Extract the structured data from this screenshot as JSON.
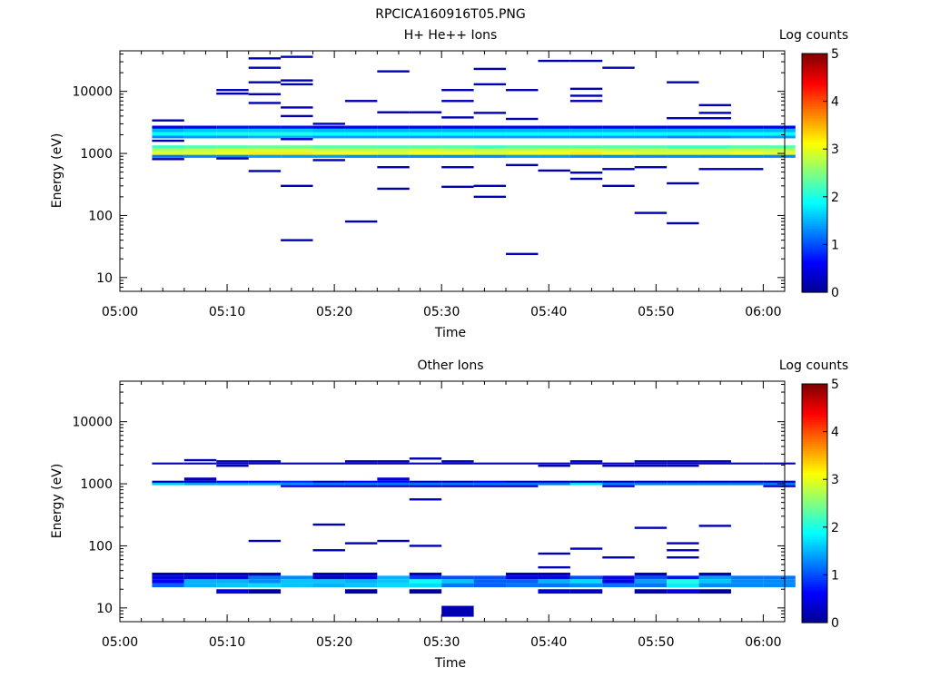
{
  "figure_title": "RPCICA160916T05.PNG",
  "colormap": [
    "#00008f",
    "#0000ff",
    "#0080ff",
    "#00ffff",
    "#80ff80",
    "#ffff00",
    "#ff8000",
    "#ff0000",
    "#800000"
  ],
  "chart_data": [
    {
      "type": "heatmap",
      "title": "H+ He++ Ions",
      "xlabel": "Time",
      "ylabel": "Energy (eV)",
      "x_ticks": [
        "05:00",
        "05:10",
        "05:20",
        "05:30",
        "05:40",
        "05:50",
        "06:00"
      ],
      "x_range_minutes": [
        0,
        62
      ],
      "y_scale": "log",
      "y_ticks": [
        "10",
        "100",
        "1000",
        "10000"
      ],
      "y_range": [
        6,
        45000
      ],
      "colorbar": {
        "label": "Log counts",
        "range": [
          0,
          5
        ],
        "ticks": [
          "0",
          "1",
          "2",
          "3",
          "4",
          "5"
        ]
      },
      "columns": [
        3,
        6,
        9,
        12,
        15,
        18,
        21,
        24,
        27,
        30,
        33,
        36,
        39,
        42,
        45,
        48,
        51,
        54,
        57,
        60
      ],
      "bands": [
        {
          "e_lo": 850,
          "e_hi": 950,
          "values": [
            1.2,
            1.3,
            1.3,
            1.4,
            1.4,
            1.4,
            1.3,
            1.3,
            1.3,
            1.3,
            1.3,
            1.4,
            1.4,
            1.3,
            1.3,
            1.3,
            1.3,
            1.3,
            1.3,
            1.3
          ]
        },
        {
          "e_lo": 950,
          "e_hi": 1080,
          "values": [
            3.0,
            3.0,
            3.1,
            3.2,
            3.2,
            3.1,
            3.1,
            3.0,
            3.1,
            3.1,
            3.0,
            3.1,
            3.1,
            3.2,
            3.1,
            3.0,
            3.0,
            3.0,
            3.1,
            3.0
          ]
        },
        {
          "e_lo": 1080,
          "e_hi": 1200,
          "values": [
            2.7,
            2.8,
            2.9,
            2.9,
            2.9,
            2.8,
            2.8,
            2.8,
            2.9,
            2.8,
            2.8,
            2.8,
            2.9,
            2.9,
            2.8,
            2.8,
            2.8,
            2.8,
            2.8,
            2.8
          ]
        },
        {
          "e_lo": 1200,
          "e_hi": 1350,
          "values": [
            2.2,
            2.3,
            2.3,
            2.4,
            2.4,
            2.3,
            2.3,
            2.3,
            2.3,
            2.3,
            2.2,
            2.3,
            2.3,
            2.3,
            2.3,
            2.3,
            2.2,
            2.2,
            2.3,
            2.3
          ]
        },
        {
          "e_lo": 1750,
          "e_hi": 1950,
          "values": [
            1.3,
            1.4,
            1.4,
            1.5,
            1.5,
            1.4,
            1.4,
            1.4,
            1.4,
            1.4,
            1.4,
            1.4,
            1.4,
            1.4,
            1.4,
            1.4,
            1.3,
            1.3,
            1.4,
            1.4
          ]
        },
        {
          "e_lo": 1950,
          "e_hi": 2200,
          "values": [
            1.9,
            1.9,
            2.0,
            2.0,
            2.0,
            1.9,
            1.9,
            1.9,
            1.9,
            1.9,
            1.9,
            1.9,
            1.9,
            1.9,
            1.9,
            1.9,
            1.9,
            1.9,
            1.9,
            1.9
          ]
        },
        {
          "e_lo": 2200,
          "e_hi": 2500,
          "values": [
            1.5,
            1.6,
            1.6,
            1.6,
            1.6,
            1.5,
            1.5,
            1.5,
            1.5,
            1.5,
            1.5,
            1.5,
            1.5,
            1.5,
            1.5,
            1.5,
            1.5,
            1.5,
            1.5,
            1.5
          ]
        },
        {
          "e_lo": 2500,
          "e_hi": 2800,
          "values": [
            0.5,
            0.6,
            0.7,
            0.7,
            0.7,
            0.6,
            0.6,
            0.6,
            0.6,
            0.6,
            0.6,
            0.6,
            0.6,
            0.6,
            0.6,
            0.6,
            0.5,
            0.5,
            0.6,
            0.6
          ]
        }
      ],
      "marks": [
        {
          "col": 3,
          "e": 3400,
          "v": 0.2
        },
        {
          "col": 3,
          "e": 1600,
          "v": 0.2
        },
        {
          "col": 3,
          "e": 810,
          "v": 0.2
        },
        {
          "col": 9,
          "e": 10500,
          "v": 0.3
        },
        {
          "col": 9,
          "e": 9200,
          "v": 0.2
        },
        {
          "col": 9,
          "e": 830,
          "v": 0.2
        },
        {
          "col": 12,
          "e": 34000,
          "v": 0.2
        },
        {
          "col": 12,
          "e": 24000,
          "v": 0.2
        },
        {
          "col": 12,
          "e": 14000,
          "v": 0.2
        },
        {
          "col": 12,
          "e": 9000,
          "v": 0.2
        },
        {
          "col": 12,
          "e": 6500,
          "v": 0.2
        },
        {
          "col": 12,
          "e": 520,
          "v": 0.2
        },
        {
          "col": 15,
          "e": 36000,
          "v": 0.2
        },
        {
          "col": 15,
          "e": 15000,
          "v": 0.2
        },
        {
          "col": 15,
          "e": 13000,
          "v": 0.2
        },
        {
          "col": 15,
          "e": 5500,
          "v": 0.2
        },
        {
          "col": 15,
          "e": 4000,
          "v": 0.2
        },
        {
          "col": 15,
          "e": 1700,
          "v": 0.3
        },
        {
          "col": 15,
          "e": 300,
          "v": 0.2
        },
        {
          "col": 15,
          "e": 40,
          "v": 0.2
        },
        {
          "col": 18,
          "e": 3000,
          "v": 0.2
        },
        {
          "col": 18,
          "e": 780,
          "v": 0.2
        },
        {
          "col": 21,
          "e": 7000,
          "v": 0.2
        },
        {
          "col": 21,
          "e": 80,
          "v": 0.2
        },
        {
          "col": 24,
          "e": 21000,
          "v": 0.2
        },
        {
          "col": 24,
          "e": 4600,
          "v": 0.2
        },
        {
          "col": 24,
          "e": 600,
          "v": 0.2
        },
        {
          "col": 24,
          "e": 270,
          "v": 0.2
        },
        {
          "col": 27,
          "e": 4600,
          "v": 0.2
        },
        {
          "col": 30,
          "e": 10500,
          "v": 0.2
        },
        {
          "col": 30,
          "e": 7000,
          "v": 0.2
        },
        {
          "col": 30,
          "e": 3800,
          "v": 0.2
        },
        {
          "col": 30,
          "e": 600,
          "v": 0.2
        },
        {
          "col": 30,
          "e": 290,
          "v": 0.2
        },
        {
          "col": 33,
          "e": 23000,
          "v": 0.2
        },
        {
          "col": 33,
          "e": 13000,
          "v": 0.2
        },
        {
          "col": 33,
          "e": 4500,
          "v": 0.2
        },
        {
          "col": 33,
          "e": 300,
          "v": 0.2
        },
        {
          "col": 33,
          "e": 200,
          "v": 0.2
        },
        {
          "col": 36,
          "e": 10500,
          "v": 0.2
        },
        {
          "col": 36,
          "e": 3600,
          "v": 0.2
        },
        {
          "col": 36,
          "e": 650,
          "v": 0.2
        },
        {
          "col": 36,
          "e": 24,
          "v": 0.3
        },
        {
          "col": 39,
          "e": 31000,
          "v": 0.2
        },
        {
          "col": 39,
          "e": 530,
          "v": 0.2
        },
        {
          "col": 42,
          "e": 31000,
          "v": 0.2
        },
        {
          "col": 42,
          "e": 11000,
          "v": 0.2
        },
        {
          "col": 42,
          "e": 8500,
          "v": 0.2
        },
        {
          "col": 42,
          "e": 7000,
          "v": 0.2
        },
        {
          "col": 42,
          "e": 490,
          "v": 0.2
        },
        {
          "col": 42,
          "e": 390,
          "v": 0.2
        },
        {
          "col": 45,
          "e": 24000,
          "v": 0.2
        },
        {
          "col": 45,
          "e": 560,
          "v": 0.2
        },
        {
          "col": 45,
          "e": 300,
          "v": 0.2
        },
        {
          "col": 48,
          "e": 600,
          "v": 0.2
        },
        {
          "col": 48,
          "e": 110,
          "v": 0.2
        },
        {
          "col": 51,
          "e": 14000,
          "v": 0.2
        },
        {
          "col": 51,
          "e": 3700,
          "v": 0.2
        },
        {
          "col": 51,
          "e": 330,
          "v": 0.2
        },
        {
          "col": 51,
          "e": 75,
          "v": 0.2
        },
        {
          "col": 54,
          "e": 6000,
          "v": 0.2
        },
        {
          "col": 54,
          "e": 4500,
          "v": 0.2
        },
        {
          "col": 54,
          "e": 3700,
          "v": 0.2
        },
        {
          "col": 54,
          "e": 560,
          "v": 0.2
        },
        {
          "col": 57,
          "e": 560,
          "v": 0.2
        }
      ]
    },
    {
      "type": "heatmap",
      "title": "Other Ions",
      "xlabel": "Time",
      "ylabel": "Energy (eV)",
      "x_ticks": [
        "05:00",
        "05:10",
        "05:20",
        "05:30",
        "05:40",
        "05:50",
        "06:00"
      ],
      "x_range_minutes": [
        0,
        62
      ],
      "y_scale": "log",
      "y_ticks": [
        "10",
        "100",
        "1000",
        "10000"
      ],
      "y_range": [
        6,
        45000
      ],
      "colorbar": {
        "label": "Log counts",
        "range": [
          0,
          5
        ],
        "ticks": [
          "0",
          "1",
          "2",
          "3",
          "4",
          "5"
        ]
      },
      "columns": [
        3,
        6,
        9,
        12,
        15,
        18,
        21,
        24,
        27,
        30,
        33,
        36,
        39,
        42,
        45,
        48,
        51,
        54,
        57,
        60
      ],
      "bands": [
        {
          "e_lo": 17,
          "e_hi": 20,
          "values": [
            null,
            null,
            0.5,
            0.1,
            null,
            null,
            0.1,
            null,
            0.1,
            null,
            null,
            null,
            0.4,
            0.3,
            null,
            0.2,
            0.5,
            0.1,
            null,
            null
          ]
        },
        {
          "e_lo": 21.5,
          "e_hi": 25,
          "values": [
            1.1,
            1.5,
            1.6,
            1.7,
            1.6,
            1.5,
            1.6,
            1.7,
            1.7,
            1.2,
            1.1,
            1.2,
            1.2,
            1.3,
            1.2,
            1.2,
            1.8,
            1.3,
            1.3,
            1.3
          ]
        },
        {
          "e_lo": 25,
          "e_hi": 29,
          "values": [
            0.6,
            1.5,
            1.5,
            1.3,
            1.6,
            1.6,
            1.5,
            1.6,
            1.9,
            1.6,
            1.1,
            1.1,
            1.5,
            1.7,
            0.5,
            1.4,
            2.0,
            1.6,
            1.3,
            1.3
          ]
        },
        {
          "e_lo": 29,
          "e_hi": 33,
          "values": [
            0.5,
            0.5,
            0.5,
            1.2,
            1.3,
            0.3,
            0.5,
            1.5,
            0.9,
            1.0,
            1.0,
            0.5,
            0.5,
            1.0,
            0.5,
            1.0,
            0.7,
            1.4,
            1.2,
            1.2
          ]
        },
        {
          "e_lo": 33,
          "e_hi": 37,
          "values": [
            0.2,
            0.2,
            0.2,
            0.2,
            null,
            0.2,
            0.2,
            null,
            0.2,
            null,
            null,
            0.2,
            0.2,
            null,
            null,
            0.2,
            null,
            0.2,
            null,
            null
          ]
        },
        {
          "e_lo": 880,
          "e_hi": 950,
          "values": [
            null,
            null,
            null,
            null,
            0.5,
            0.4,
            0.3,
            0.3,
            0.3,
            0.3,
            0.3,
            0.3,
            null,
            null,
            0.3,
            null,
            null,
            null,
            null,
            0.3
          ]
        },
        {
          "e_lo": 950,
          "e_hi": 1040,
          "values": [
            1.6,
            1.4,
            1.4,
            1.4,
            1.3,
            1.2,
            1.2,
            1.2,
            1.2,
            1.2,
            1.2,
            1.2,
            1.2,
            1.7,
            1.2,
            1.2,
            1.2,
            1.2,
            1.2,
            1.2
          ]
        },
        {
          "e_lo": 1040,
          "e_hi": 1120,
          "values": [
            0.2,
            0.3,
            0.6,
            0.6,
            0.8,
            0.2,
            0.6,
            0.6,
            0.2,
            0.2,
            0.5,
            0.2,
            0.2,
            0.2,
            0.2,
            0.2,
            0.2,
            0.2,
            0.2,
            0.2
          ]
        },
        {
          "e_lo": 1120,
          "e_hi": 1260,
          "values": [
            null,
            0.2,
            null,
            null,
            null,
            null,
            null,
            0.4,
            null,
            null,
            null,
            null,
            null,
            null,
            null,
            null,
            null,
            null,
            null,
            null
          ]
        },
        {
          "e_lo": 2050,
          "e_hi": 2200,
          "values": [
            0.2,
            0.2,
            0.2,
            0.2,
            0.2,
            0.2,
            0.2,
            0.2,
            0.2,
            0.2,
            0.2,
            0.2,
            0.2,
            0.2,
            0.2,
            0.2,
            0.2,
            0.2,
            0.2,
            0.2
          ]
        }
      ],
      "marks": [
        {
          "col": 6,
          "e": 2400,
          "v": 0.2
        },
        {
          "col": 9,
          "e": 2300,
          "v": 0.2
        },
        {
          "col": 9,
          "e": 1950,
          "v": 0.2
        },
        {
          "col": 12,
          "e": 2300,
          "v": 0.2
        },
        {
          "col": 12,
          "e": 120,
          "v": 0.2
        },
        {
          "col": 18,
          "e": 220,
          "v": 0.2
        },
        {
          "col": 18,
          "e": 85,
          "v": 0.2
        },
        {
          "col": 21,
          "e": 2300,
          "v": 0.2
        },
        {
          "col": 21,
          "e": 110,
          "v": 0.2
        },
        {
          "col": 24,
          "e": 2300,
          "v": 0.2
        },
        {
          "col": 24,
          "e": 120,
          "v": 0.2
        },
        {
          "col": 27,
          "e": 2550,
          "v": 0.2
        },
        {
          "col": 27,
          "e": 560,
          "v": 0.2
        },
        {
          "col": 27,
          "e": 100,
          "v": 0.2
        },
        {
          "col": 30,
          "e": 2300,
          "v": 0.2
        },
        {
          "col": 30,
          "e": 9,
          "v": 0.2,
          "tall": true
        },
        {
          "col": 39,
          "e": 1950,
          "v": 0.2
        },
        {
          "col": 39,
          "e": 75,
          "v": 0.2
        },
        {
          "col": 39,
          "e": 45,
          "v": 0.2
        },
        {
          "col": 42,
          "e": 2300,
          "v": 0.2
        },
        {
          "col": 42,
          "e": 90,
          "v": 0.2
        },
        {
          "col": 45,
          "e": 1950,
          "v": 0.2
        },
        {
          "col": 45,
          "e": 65,
          "v": 0.2
        },
        {
          "col": 48,
          "e": 2300,
          "v": 0.2
        },
        {
          "col": 48,
          "e": 1950,
          "v": 0.2
        },
        {
          "col": 48,
          "e": 195,
          "v": 0.2
        },
        {
          "col": 51,
          "e": 2300,
          "v": 0.2
        },
        {
          "col": 51,
          "e": 1950,
          "v": 0.2
        },
        {
          "col": 51,
          "e": 110,
          "v": 0.2
        },
        {
          "col": 51,
          "e": 85,
          "v": 0.2
        },
        {
          "col": 51,
          "e": 65,
          "v": 0.2
        },
        {
          "col": 54,
          "e": 2300,
          "v": 0.2
        },
        {
          "col": 54,
          "e": 210,
          "v": 0.2
        }
      ]
    }
  ]
}
